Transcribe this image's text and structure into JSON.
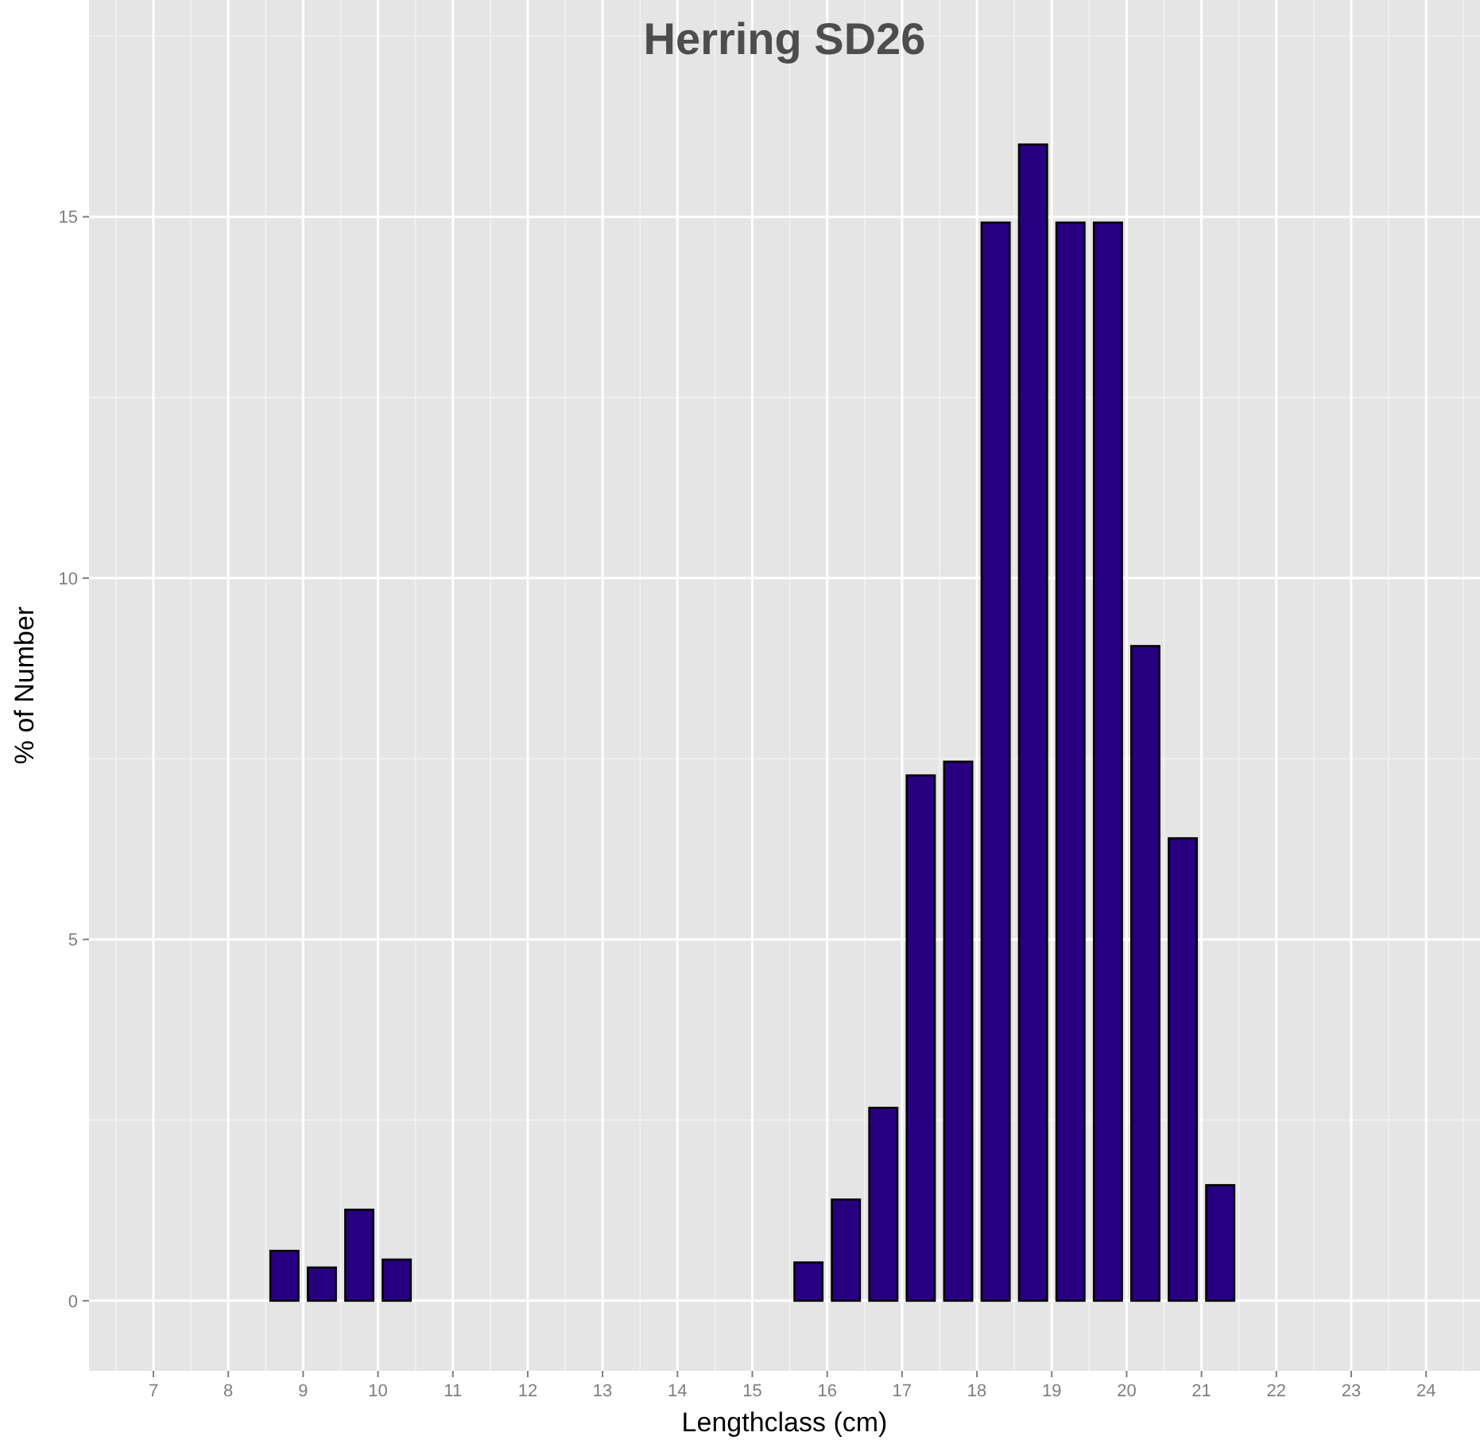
{
  "chart_data": {
    "type": "bar",
    "title": "Herring SD26",
    "xlabel": "Lengthclass (cm)",
    "ylabel": "% of Number",
    "x": [
      8.75,
      9.25,
      9.75,
      10.25,
      15.75,
      16.25,
      16.75,
      17.25,
      17.75,
      18.25,
      18.75,
      19.25,
      19.75,
      20.25,
      20.75,
      21.25
    ],
    "values": [
      0.69,
      0.46,
      1.26,
      0.57,
      0.53,
      1.4,
      2.67,
      7.27,
      7.46,
      14.92,
      16.0,
      14.92,
      14.92,
      9.06,
      6.4,
      1.6
    ],
    "color": "#270080",
    "xlim": [
      6.14,
      24.72
    ],
    "xticks": [
      7,
      8,
      9,
      10,
      11,
      12,
      13,
      14,
      15,
      16,
      17,
      18,
      19,
      20,
      21,
      22,
      23,
      24
    ],
    "ylim": [
      -0.97,
      18.0
    ],
    "yticks": [
      0,
      5,
      10,
      15
    ],
    "grid": true
  }
}
